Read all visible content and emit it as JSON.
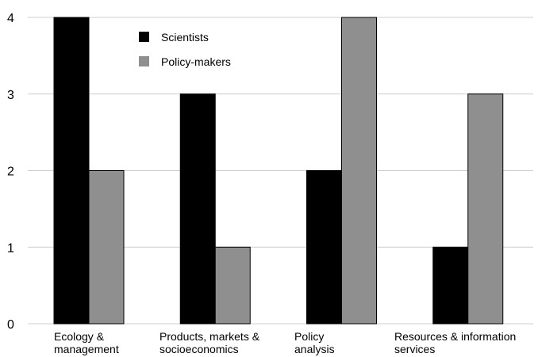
{
  "chart_data": {
    "type": "bar",
    "categories": [
      [
        "Ecology &",
        "management"
      ],
      [
        "Products, markets &",
        "socioeconomics"
      ],
      [
        "Policy",
        "analysis"
      ],
      [
        "Resources & information",
        "services"
      ]
    ],
    "series": [
      {
        "name": "Scientists",
        "values": [
          4,
          3,
          2,
          1
        ],
        "color": "#000000"
      },
      {
        "name": "Policy-makers",
        "values": [
          2,
          1,
          4,
          3
        ],
        "color": "#8f8f8f"
      }
    ],
    "yticks": [
      "0",
      "1",
      "2",
      "3",
      "4"
    ],
    "ylim": [
      0,
      4
    ],
    "grid": true,
    "legend": "top-center",
    "title": "",
    "xlabel": "",
    "ylabel": ""
  }
}
